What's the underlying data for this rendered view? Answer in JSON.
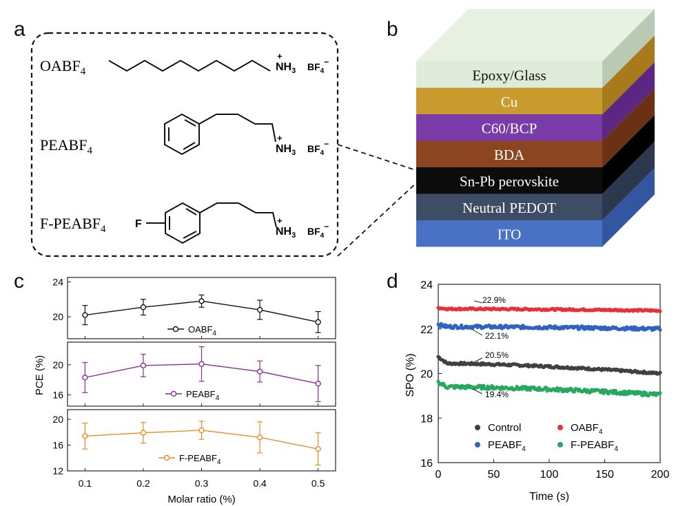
{
  "panels": {
    "a": "a",
    "b": "b",
    "c": "c",
    "d": "d"
  },
  "molecules": [
    {
      "name": "OABF",
      "sub": "4",
      "ammonium": "NH",
      "nh_sub": "3",
      "plus": "+",
      "counterion": "BF",
      "ci_sub": "4",
      "ci_sup": "−"
    },
    {
      "name": "PEABF",
      "sub": "4",
      "ammonium": "NH",
      "nh_sub": "3",
      "plus": "+",
      "counterion": "BF",
      "ci_sub": "4",
      "ci_sup": "−"
    },
    {
      "name": "F-PEABF",
      "sub": "4",
      "ammonium": "NH",
      "nh_sub": "3",
      "plus": "+",
      "counterion": "BF",
      "ci_sub": "4",
      "ci_sup": "−",
      "substituent": "F"
    }
  ],
  "stack_layers": [
    {
      "label": "Epoxy/Glass",
      "color": "#dfecd9",
      "side": "#b9c9b3",
      "text": "#111111"
    },
    {
      "label": "Cu",
      "color": "#c99a2e",
      "side": "#a77a1c",
      "text": "#ffffff"
    },
    {
      "label": "C60/BCP",
      "color": "#7a3aa8",
      "side": "#5c2683",
      "text": "#ffffff"
    },
    {
      "label": "BDA",
      "color": "#8b4521",
      "side": "#6a3115",
      "text": "#ffffff"
    },
    {
      "label": "Sn-Pb perovskite",
      "color": "#0c0c0c",
      "side": "#000000",
      "text": "#ffffff"
    },
    {
      "label": "Neutral PEDOT",
      "color": "#3e4d66",
      "side": "#2c384d",
      "text": "#ffffff"
    },
    {
      "label": "ITO",
      "color": "#4a72c4",
      "side": "#3356a0",
      "text": "#ffffff"
    }
  ],
  "chart_data": [
    {
      "type": "line",
      "panel": "c",
      "xlabel": "Molar ratio (%)",
      "ylabel": "PCE (%)",
      "x": [
        0.1,
        0.2,
        0.3,
        0.4,
        0.5
      ],
      "xticks": [
        "0.1",
        "0.2",
        "0.3",
        "0.4",
        "0.5"
      ],
      "xlim": [
        0.07,
        0.53
      ],
      "subplots": [
        {
          "series": {
            "name": "OABF",
            "name_sub": "4",
            "color": "#111111",
            "values": [
              20.2,
              21.1,
              21.8,
              20.8,
              19.4
            ],
            "errors": [
              1.1,
              0.9,
              0.7,
              1.1,
              1.2
            ]
          },
          "ylim": [
            17.5,
            24.5
          ],
          "yticks": [
            20,
            24
          ],
          "ytick_labels": [
            "20",
            "24"
          ]
        },
        {
          "series": {
            "name": "PEABF",
            "name_sub": "4",
            "color": "#8a2c97",
            "values": [
              18.3,
              19.9,
              20.1,
              19.1,
              17.5
            ],
            "errors": [
              2.0,
              1.5,
              2.3,
              1.4,
              2.4
            ]
          },
          "ylim": [
            14.5,
            23.0
          ],
          "yticks": [
            16,
            20
          ],
          "ytick_labels": [
            "16",
            "20"
          ]
        },
        {
          "series": {
            "name": "F-PEABF",
            "name_sub": "4",
            "color": "#f08a1e",
            "values": [
              17.4,
              17.9,
              18.3,
              17.2,
              15.4
            ],
            "errors": [
              2.0,
              1.6,
              1.4,
              2.4,
              2.5
            ]
          },
          "ylim": [
            12,
            21.5
          ],
          "yticks": [
            12,
            16,
            20
          ],
          "ytick_labels": [
            "12",
            "16",
            "20"
          ]
        }
      ]
    },
    {
      "type": "line",
      "panel": "d",
      "xlabel": "Time (s)",
      "ylabel": "SPO (%)",
      "xlim": [
        0,
        200
      ],
      "ylim": [
        16,
        24
      ],
      "xticks": [
        0,
        50,
        100,
        150,
        200
      ],
      "yticks": [
        16,
        18,
        20,
        22,
        24
      ],
      "series": [
        {
          "name": "Control",
          "name_sub": "",
          "color": "#404040",
          "start": 20.75,
          "level": 20.45,
          "end": 20.0,
          "noise": 0.05,
          "peak_label": "20.5%"
        },
        {
          "name": "OABF",
          "name_sub": "4",
          "color": "#e8303a",
          "start": 22.95,
          "level": 22.9,
          "end": 22.82,
          "noise": 0.04,
          "peak_label": "22.9%"
        },
        {
          "name": "PEABF",
          "name_sub": "4",
          "color": "#2f63c1",
          "start": 22.2,
          "level": 22.1,
          "end": 22.0,
          "noise": 0.07,
          "peak_label": "22.1%"
        },
        {
          "name": "F-PEABF",
          "name_sub": "4",
          "color": "#27a85f",
          "start": 19.6,
          "level": 19.4,
          "end": 19.05,
          "noise": 0.08,
          "peak_label": "19.4%"
        }
      ]
    }
  ]
}
